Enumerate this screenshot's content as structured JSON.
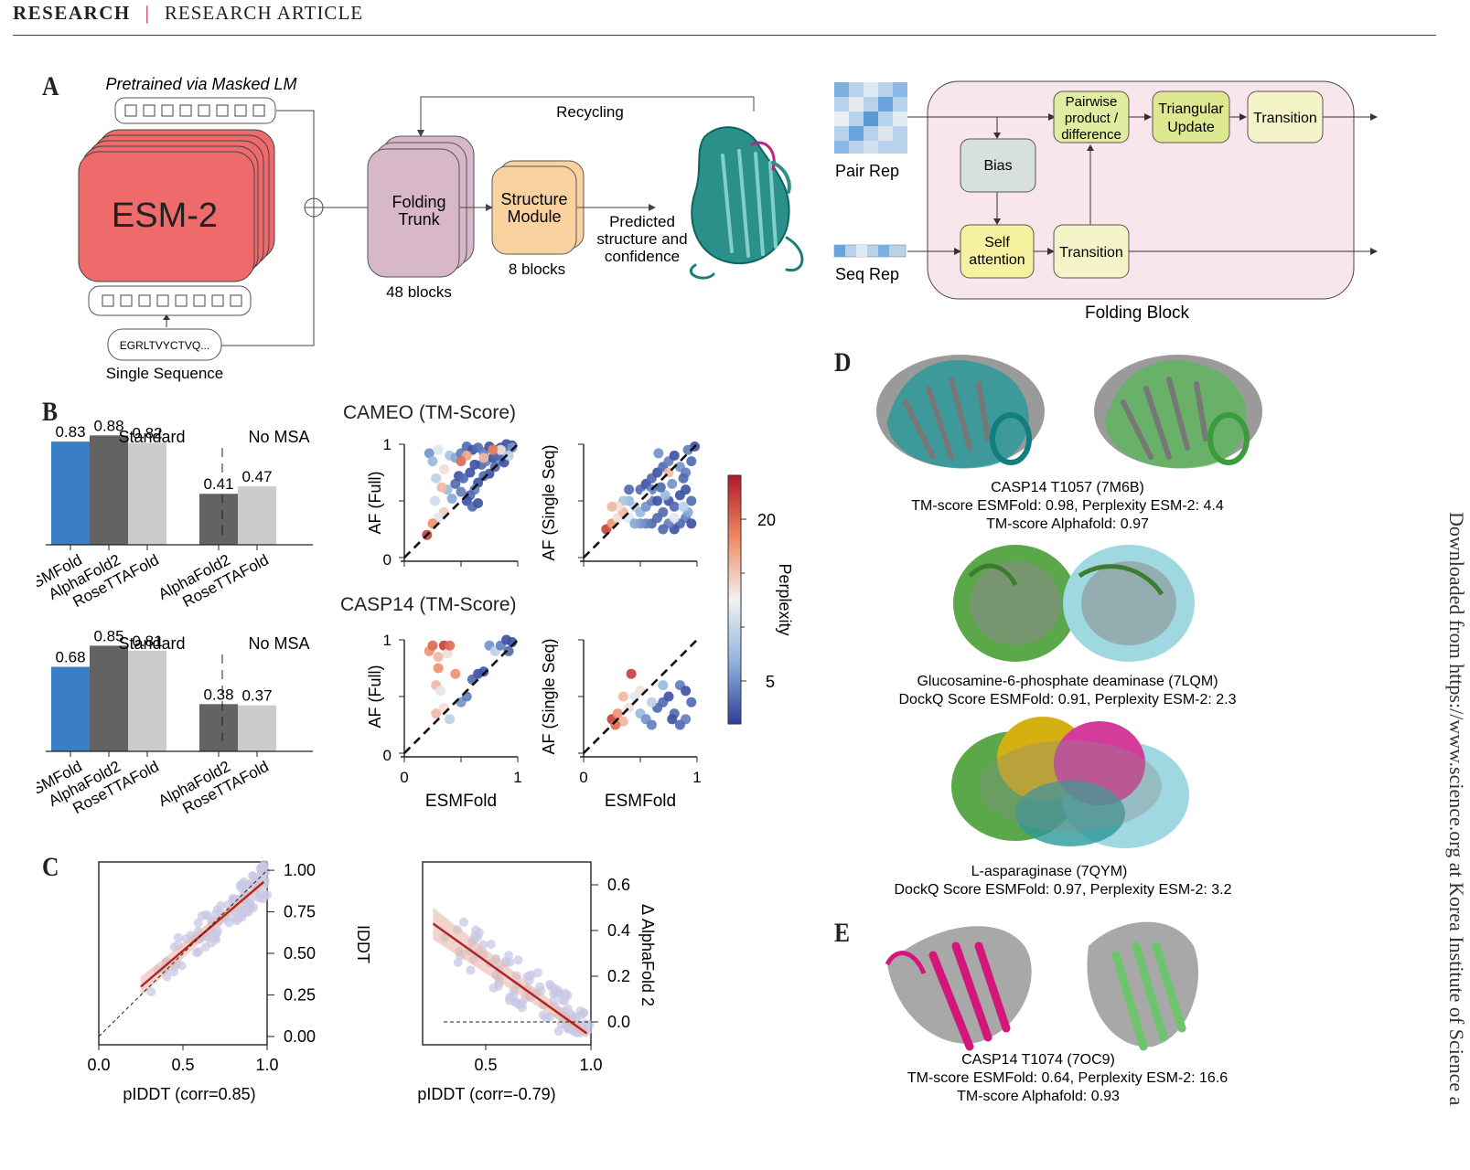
{
  "header": {
    "section": "RESEARCH",
    "separator": "|",
    "category": "RESEARCH ARTICLE"
  },
  "side_note": "Downloaded from https://www.science.org at Korea Institute of Science a",
  "panel_labels": {
    "a": "A",
    "b": "B",
    "c": "C",
    "d": "D",
    "e": "E"
  },
  "panel_a": {
    "pretrained": "Pretrained via Masked LM",
    "esm": "ESM-2",
    "sequence": "EGRLTVYCTVQ...",
    "single_sequence": "Single Sequence",
    "recycling": "Recycling",
    "folding_trunk": [
      "Folding",
      "Trunk"
    ],
    "trunk_blocks": "48 blocks",
    "structure_module": [
      "Structure",
      "Module"
    ],
    "module_blocks": "8 blocks",
    "predicted": [
      "Predicted",
      "structure and",
      "confidence"
    ],
    "pair_rep": "Pair Rep",
    "seq_rep": "Seq Rep",
    "pairwise": [
      "Pairwise",
      "product /",
      "difference"
    ],
    "triangular": [
      "Triangular",
      "Update"
    ],
    "transition": "Transition",
    "bias": "Bias",
    "self_attention": [
      "Self",
      "attention"
    ],
    "folding_block": "Folding Block"
  },
  "panel_b": {
    "cameo_title": "CAMEO (TM-Score)",
    "casp14_title": "CASP14 (TM-Score)",
    "ylabel_full": "AF (Full)",
    "ylabel_single": "AF (Single Seq)",
    "xlabel": "ESMFold",
    "colorbar_label": "Perplexity",
    "colorbar_ticks": [
      "20",
      "5"
    ]
  },
  "panel_c": {
    "left_xlabel": "pIDDT (corr=0.85)",
    "left_ylabel": "IDDT",
    "right_xlabel": "pIDDT (corr=-0.79)",
    "right_ylabel": "Δ AlphaFold 2"
  },
  "panel_d": {
    "items": [
      {
        "lines": [
          "CASP14 T1057 (7M6B)",
          "TM-score ESMFold: 0.98, Perplexity ESM-2: 4.4",
          "TM-score Alphafold: 0.97"
        ]
      },
      {
        "lines": [
          "Glucosamine-6-phosphate deaminase (7LQM)",
          "DockQ Score ESMFold: 0.91, Perplexity ESM-2: 2.3"
        ]
      },
      {
        "lines": [
          "L-asparaginase (7QYM)",
          "DockQ Score ESMFold: 0.97, Perplexity ESM-2: 3.2"
        ]
      }
    ]
  },
  "panel_e": {
    "lines": [
      "CASP14 T1074 (7OC9)",
      "TM-score ESMFold: 0.64, Perplexity ESM-2: 16.6",
      "TM-score Alphafold: 0.93"
    ]
  },
  "colors": {
    "esmfold": "#3a7ec8",
    "alphafold2": "#636363",
    "rosettafold": "#cccccc",
    "esm_red": "#ef6b6b",
    "trunk": "#d8b8c8",
    "module": "#f9d2a0",
    "block_bg": "#f8e6ec",
    "yellow": "#f6f2a0",
    "green": "#e0eca0",
    "accent": "#c8102e"
  },
  "chart_data": [
    {
      "type": "bar",
      "title": "",
      "groups": [
        "Standard",
        "No MSA"
      ],
      "categories": [
        "ESMFold",
        "AlphaFold2",
        "RoseTTAFold",
        "AlphaFold2",
        "RoseTTAFold"
      ],
      "values": [
        0.83,
        0.88,
        0.82,
        0.41,
        0.47
      ],
      "ylim": [
        0,
        1
      ]
    },
    {
      "type": "bar",
      "title": "",
      "groups": [
        "Standard",
        "No MSA"
      ],
      "categories": [
        "ESMFold",
        "AlphaFold2",
        "RoseTTAFold",
        "AlphaFold2",
        "RoseTTAFold"
      ],
      "values": [
        0.68,
        0.85,
        0.81,
        0.38,
        0.37
      ],
      "ylim": [
        0,
        1
      ]
    },
    {
      "type": "scatter",
      "title": "CAMEO (TM-Score)",
      "xlabel": "ESMFold",
      "ylabel": "AF (Full)",
      "xlim": [
        0,
        1
      ],
      "ylim": [
        0,
        1
      ],
      "xticks": [
        "0",
        "1"
      ],
      "yticks": [
        "0",
        "1"
      ],
      "points": [
        [
          0.22,
          0.92,
          6
        ],
        [
          0.25,
          0.85,
          8
        ],
        [
          0.3,
          0.95,
          12
        ],
        [
          0.28,
          0.7,
          10
        ],
        [
          0.35,
          0.78,
          14
        ],
        [
          0.4,
          0.9,
          9
        ],
        [
          0.45,
          0.88,
          7
        ],
        [
          0.5,
          0.92,
          5
        ],
        [
          0.55,
          0.98,
          4
        ],
        [
          0.6,
          0.95,
          3
        ],
        [
          0.65,
          0.97,
          4
        ],
        [
          0.7,
          0.93,
          5
        ],
        [
          0.75,
          0.98,
          3
        ],
        [
          0.8,
          0.95,
          4
        ],
        [
          0.85,
          0.97,
          3
        ],
        [
          0.9,
          1.0,
          3
        ],
        [
          0.95,
          0.99,
          3
        ],
        [
          0.92,
          0.96,
          4
        ],
        [
          0.88,
          0.92,
          5
        ],
        [
          0.85,
          0.86,
          6
        ],
        [
          0.8,
          0.8,
          4
        ],
        [
          0.75,
          0.74,
          3
        ],
        [
          0.7,
          0.72,
          4
        ],
        [
          0.65,
          0.66,
          3
        ],
        [
          0.62,
          0.6,
          5
        ],
        [
          0.58,
          0.55,
          4
        ],
        [
          0.55,
          0.5,
          3
        ],
        [
          0.6,
          0.45,
          4
        ],
        [
          0.65,
          0.48,
          3
        ],
        [
          0.5,
          0.58,
          5
        ],
        [
          0.45,
          0.65,
          4
        ],
        [
          0.48,
          0.72,
          3
        ],
        [
          0.52,
          0.7,
          4
        ],
        [
          0.58,
          0.75,
          3
        ],
        [
          0.68,
          0.82,
          4
        ],
        [
          0.72,
          0.85,
          5
        ],
        [
          0.78,
          0.88,
          3
        ],
        [
          0.82,
          0.9,
          4
        ],
        [
          0.95,
          0.97,
          6
        ],
        [
          0.88,
          0.84,
          3
        ],
        [
          0.62,
          0.82,
          3
        ],
        [
          0.7,
          0.88,
          16
        ],
        [
          0.35,
          0.4,
          15
        ],
        [
          0.3,
          0.35,
          12
        ],
        [
          0.25,
          0.3,
          18
        ],
        [
          0.2,
          0.2,
          22
        ],
        [
          0.55,
          0.9,
          17
        ],
        [
          0.85,
          0.95,
          14
        ],
        [
          0.92,
          0.9,
          10
        ],
        [
          0.78,
          0.95,
          19
        ],
        [
          0.38,
          0.6,
          8
        ],
        [
          0.42,
          0.52,
          7
        ],
        [
          0.27,
          0.5,
          11
        ],
        [
          0.33,
          0.62,
          16
        ],
        [
          0.5,
          0.85,
          20
        ]
      ]
    },
    {
      "type": "scatter",
      "title": "",
      "xlabel": "ESMFold",
      "ylabel": "AF (Single Seq)",
      "xlim": [
        0,
        1
      ],
      "ylim": [
        0,
        1
      ],
      "points": [
        [
          0.2,
          0.25,
          22
        ],
        [
          0.25,
          0.3,
          18
        ],
        [
          0.3,
          0.35,
          14
        ],
        [
          0.35,
          0.4,
          16
        ],
        [
          0.4,
          0.35,
          12
        ],
        [
          0.45,
          0.45,
          10
        ],
        [
          0.5,
          0.4,
          8
        ],
        [
          0.55,
          0.45,
          6
        ],
        [
          0.6,
          0.5,
          5
        ],
        [
          0.65,
          0.35,
          4
        ],
        [
          0.7,
          0.4,
          4
        ],
        [
          0.75,
          0.5,
          3
        ],
        [
          0.8,
          0.45,
          4
        ],
        [
          0.85,
          0.55,
          3
        ],
        [
          0.9,
          0.6,
          3
        ],
        [
          0.95,
          0.5,
          4
        ],
        [
          0.9,
          0.35,
          5
        ],
        [
          0.85,
          0.3,
          4
        ],
        [
          0.8,
          0.25,
          3
        ],
        [
          0.75,
          0.3,
          5
        ],
        [
          0.7,
          0.25,
          4
        ],
        [
          0.65,
          0.5,
          3
        ],
        [
          0.6,
          0.3,
          4
        ],
        [
          0.55,
          0.3,
          5
        ],
        [
          0.5,
          0.3,
          6
        ],
        [
          0.45,
          0.3,
          7
        ],
        [
          0.4,
          0.5,
          8
        ],
        [
          0.35,
          0.5,
          9
        ],
        [
          0.3,
          0.45,
          14
        ],
        [
          0.25,
          0.45,
          16
        ],
        [
          0.5,
          0.6,
          4
        ],
        [
          0.55,
          0.65,
          3
        ],
        [
          0.6,
          0.7,
          4
        ],
        [
          0.65,
          0.75,
          3
        ],
        [
          0.7,
          0.8,
          4
        ],
        [
          0.75,
          0.85,
          5
        ],
        [
          0.8,
          0.9,
          3
        ],
        [
          0.85,
          0.8,
          6
        ],
        [
          0.9,
          0.75,
          5
        ],
        [
          0.95,
          0.85,
          4
        ],
        [
          0.95,
          0.3,
          3
        ],
        [
          0.92,
          0.4,
          7
        ],
        [
          0.88,
          0.45,
          10
        ],
        [
          0.8,
          0.35,
          12
        ],
        [
          0.72,
          0.55,
          8
        ],
        [
          0.6,
          0.6,
          5
        ],
        [
          0.68,
          0.62,
          4
        ],
        [
          0.78,
          0.65,
          6
        ],
        [
          0.88,
          0.7,
          4
        ],
        [
          0.66,
          0.92,
          6
        ],
        [
          0.75,
          0.75,
          16
        ],
        [
          0.55,
          0.55,
          13
        ],
        [
          0.98,
          0.98,
          3
        ],
        [
          0.92,
          0.95,
          5
        ],
        [
          0.4,
          0.6,
          4
        ]
      ]
    },
    {
      "type": "scatter",
      "title": "CASP14 (TM-Score)",
      "xlabel": "ESMFold",
      "ylabel": "AF (Full)",
      "xlim": [
        0,
        1
      ],
      "ylim": [
        0,
        1
      ],
      "xticks": [
        "0",
        "1"
      ],
      "yticks": [
        "0",
        "1"
      ],
      "points": [
        [
          0.22,
          0.9,
          18
        ],
        [
          0.25,
          0.95,
          20
        ],
        [
          0.3,
          0.85,
          16
        ],
        [
          0.35,
          0.95,
          22
        ],
        [
          0.38,
          0.88,
          14
        ],
        [
          0.4,
          0.95,
          20
        ],
        [
          0.28,
          0.6,
          16
        ],
        [
          0.32,
          0.55,
          12
        ],
        [
          0.45,
          0.7,
          18
        ],
        [
          0.35,
          0.4,
          14
        ],
        [
          0.28,
          0.35,
          16
        ],
        [
          0.4,
          0.3,
          10
        ],
        [
          0.5,
          0.45,
          6
        ],
        [
          0.55,
          0.5,
          5
        ],
        [
          0.6,
          0.65,
          4
        ],
        [
          0.65,
          0.7,
          3
        ],
        [
          0.75,
          0.95,
          6
        ],
        [
          0.8,
          0.9,
          10
        ],
        [
          0.85,
          0.95,
          5
        ],
        [
          0.9,
          1.0,
          3
        ],
        [
          0.95,
          0.98,
          3
        ],
        [
          0.92,
          0.9,
          4
        ],
        [
          0.7,
          0.72,
          3
        ],
        [
          0.3,
          0.75,
          18
        ]
      ]
    },
    {
      "type": "scatter",
      "title": "",
      "xlabel": "ESMFold",
      "ylabel": "AF (Single Seq)",
      "xlim": [
        0,
        1
      ],
      "ylim": [
        0,
        1
      ],
      "points": [
        [
          0.25,
          0.3,
          22
        ],
        [
          0.3,
          0.35,
          18
        ],
        [
          0.35,
          0.28,
          16
        ],
        [
          0.28,
          0.25,
          20
        ],
        [
          0.4,
          0.4,
          14
        ],
        [
          0.45,
          0.5,
          12
        ],
        [
          0.5,
          0.35,
          8
        ],
        [
          0.55,
          0.3,
          6
        ],
        [
          0.6,
          0.25,
          5
        ],
        [
          0.65,
          0.4,
          4
        ],
        [
          0.7,
          0.45,
          4
        ],
        [
          0.75,
          0.5,
          3
        ],
        [
          0.8,
          0.35,
          4
        ],
        [
          0.85,
          0.6,
          5
        ],
        [
          0.9,
          0.55,
          3
        ],
        [
          0.95,
          0.45,
          4
        ],
        [
          0.9,
          0.3,
          5
        ],
        [
          0.85,
          0.25,
          4
        ],
        [
          0.78,
          0.3,
          3
        ],
        [
          0.7,
          0.6,
          8
        ],
        [
          0.42,
          0.7,
          22
        ],
        [
          0.5,
          0.55,
          14
        ],
        [
          0.6,
          0.45,
          10
        ],
        [
          0.35,
          0.5,
          16
        ]
      ]
    },
    {
      "type": "scatter",
      "title": "",
      "xlabel": "pIDDT (corr=0.85)",
      "ylabel": "IDDT",
      "xlim": [
        0,
        1
      ],
      "ylim": [
        -0.05,
        1.05
      ],
      "xticks": [
        "0.0",
        "0.5",
        "1.0"
      ],
      "yticks": [
        "1.00",
        "0.75",
        "0.50",
        "0.25",
        "0.00"
      ],
      "regression": [
        [
          0.25,
          0.3
        ],
        [
          0.98,
          0.93
        ]
      ]
    },
    {
      "type": "scatter",
      "title": "",
      "xlabel": "pIDDT (corr=-0.79)",
      "ylabel": "Δ AlphaFold 2",
      "xlim": [
        0.2,
        1.0
      ],
      "ylim": [
        -0.1,
        0.7
      ],
      "xticks": [
        "0.5",
        "1.0"
      ],
      "yticks": [
        "0.6",
        "0.4",
        "0.2",
        "0.0"
      ],
      "regression": [
        [
          0.25,
          0.43
        ],
        [
          0.98,
          -0.05
        ]
      ]
    }
  ]
}
